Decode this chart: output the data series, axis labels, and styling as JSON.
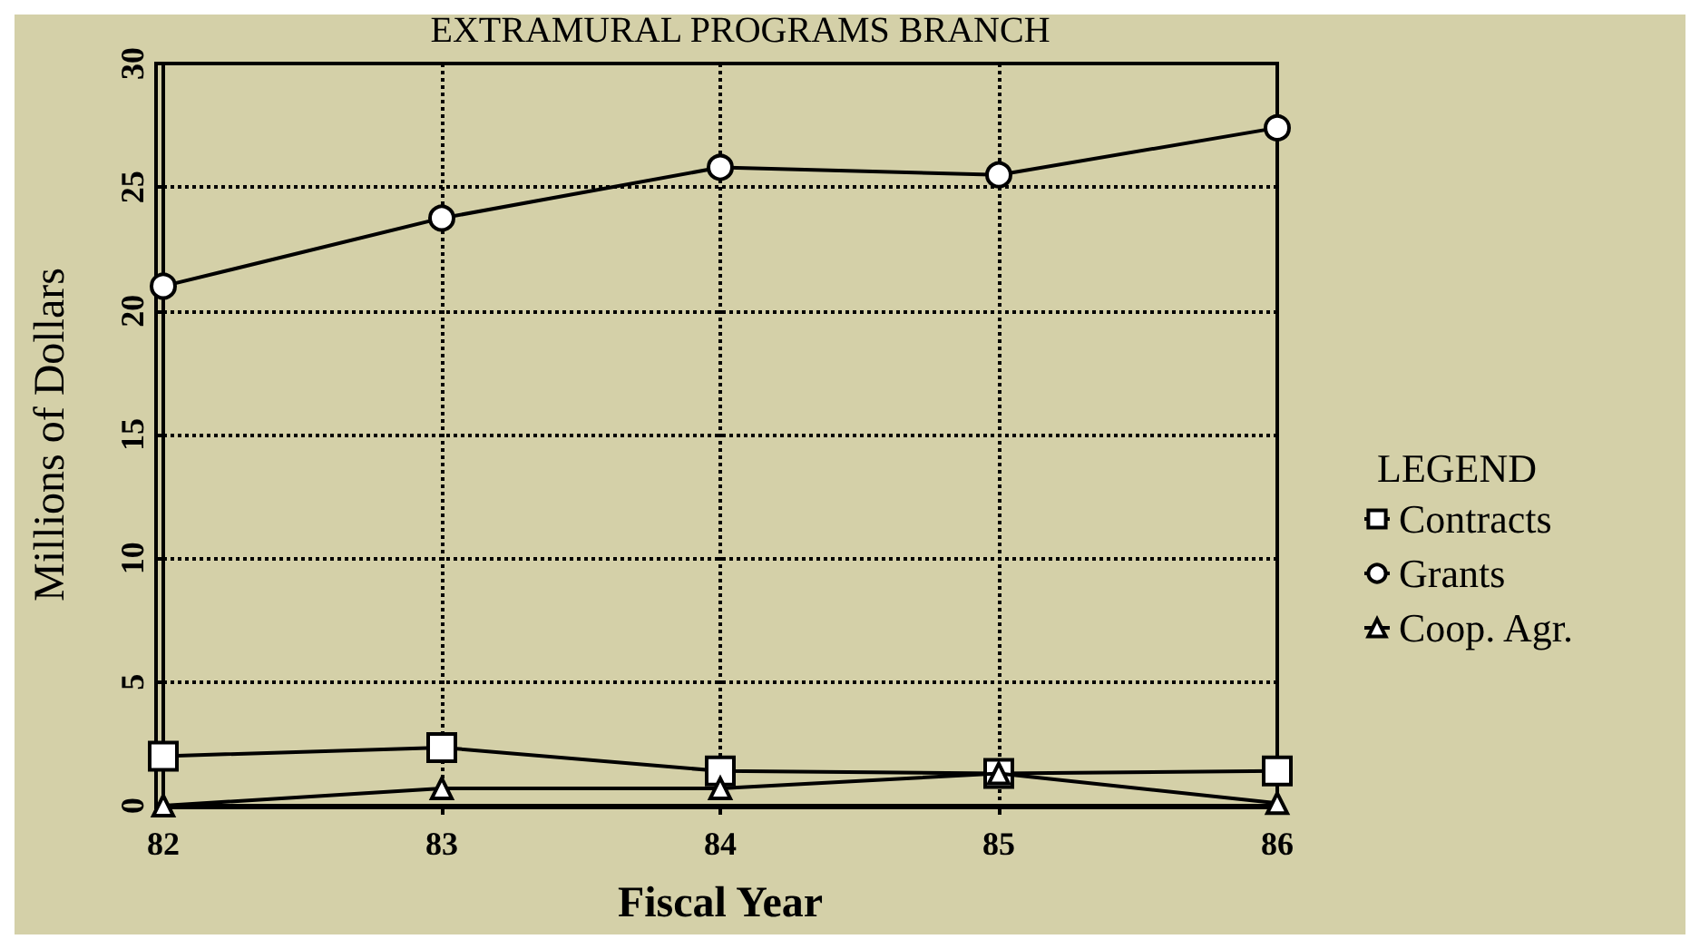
{
  "chart_data": {
    "type": "line",
    "title": "EXTRAMURAL PROGRAMS BRANCH",
    "xlabel": "Fiscal Year",
    "ylabel": "Millions of Dollars",
    "legend_title": "LEGEND",
    "x": [
      82,
      83,
      84,
      85,
      86
    ],
    "xlim": [
      82,
      86
    ],
    "xticks": [
      82,
      83,
      84,
      85,
      86
    ],
    "ylim": [
      0,
      30
    ],
    "yticks": [
      0,
      5,
      10,
      15,
      20,
      25,
      30
    ],
    "grid": true,
    "legend": "right",
    "line_style": "solid",
    "series": [
      {
        "name": "Contracts",
        "color": "#000000",
        "marker": "square",
        "values": [
          2.0,
          2.35,
          1.4,
          1.3,
          1.4
        ]
      },
      {
        "name": "Grants",
        "color": "#000000",
        "marker": "circle",
        "values": [
          21.0,
          23.75,
          25.8,
          25.5,
          27.4
        ]
      },
      {
        "name": "Coop. Agr.",
        "color": "#000000",
        "marker": "triangle",
        "values": [
          0,
          0.7,
          0.7,
          1.3,
          0.1
        ]
      }
    ]
  }
}
